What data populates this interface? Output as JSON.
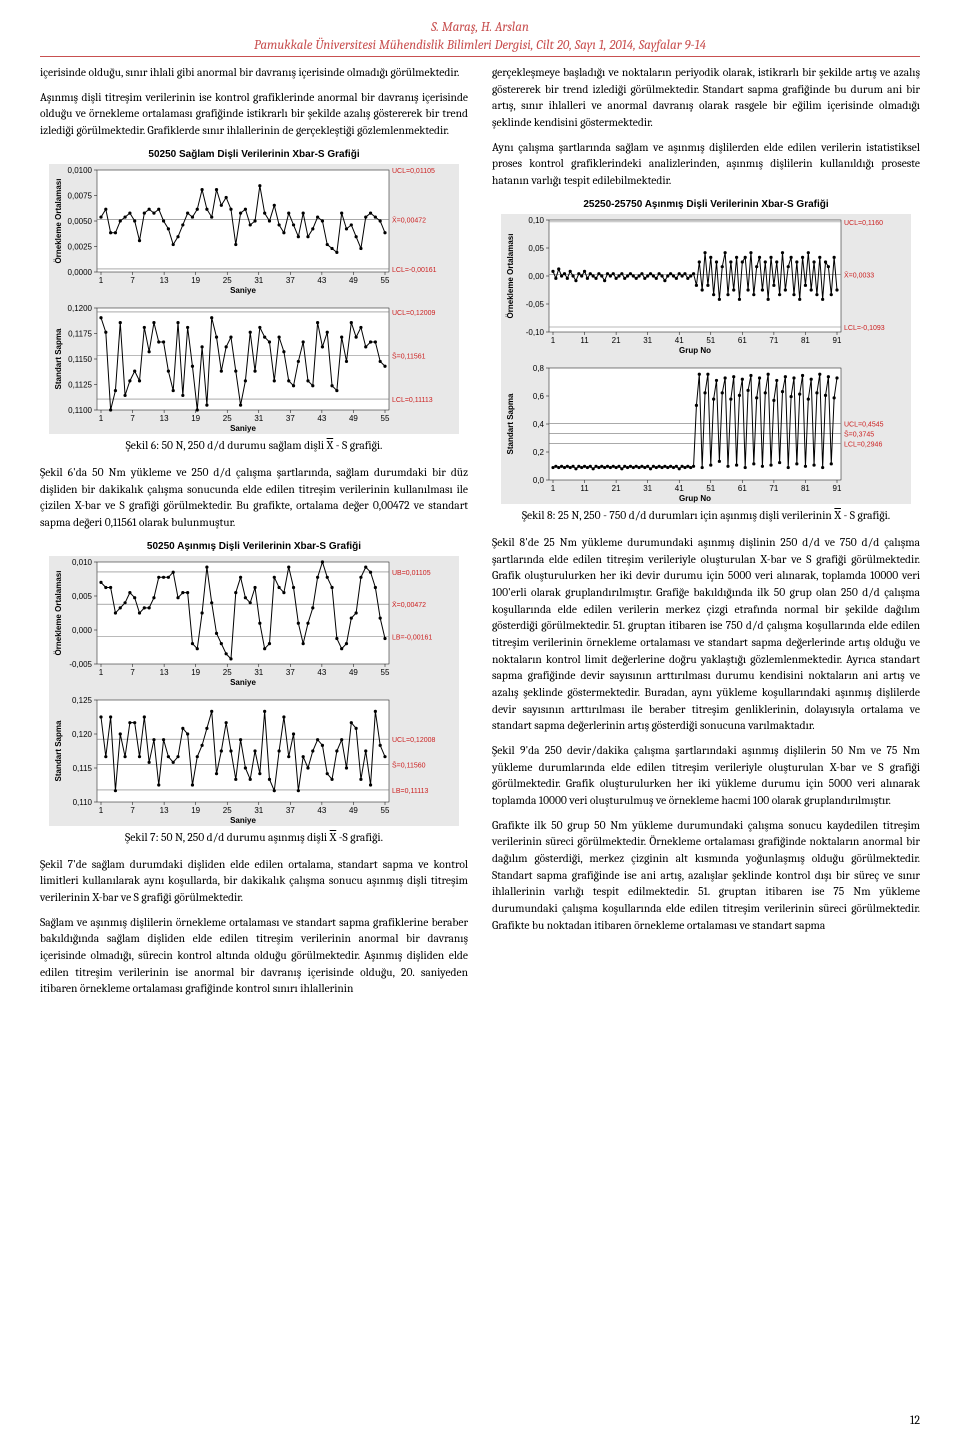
{
  "header": {
    "authors": "S. Maraş, H. Arslan",
    "journal": "Pamukkale Üniversitesi Mühendislik Bilimleri Dergisi, Cilt 20, Sayı 1, 2014, Sayfalar 9-14"
  },
  "leftColumn": {
    "p1": "içerisinde olduğu, sınır ihlali gibi anormal bir davranış içerisinde olmadığı görülmektedir.",
    "p2": "Aşınmış dişli titreşim verilerinin ise kontrol grafiklerinde anormal bir davranış içerisinde olduğu ve örnekleme ortalaması grafiğinde istikrarlı bir şekilde azalış göstererek bir trend izlediği görülmektedir. Grafiklerde sınır ihlallerinin de gerçekleştiği gözlemlenmektedir.",
    "fig6caption": "Şekil 6: 50 N, 250 d/d durumu sağlam dişli ",
    "fig6captionEnd": " - S grafiği.",
    "p3": "Şekil 6'da 50 Nm yükleme ve 250 d/d çalışma şartlarında, sağlam durumdaki bir düz dişliden bir dakikalık çalışma sonucunda elde edilen titreşim verilerinin kullanılması ile çizilen X-bar ve S grafiği görülmektedir. Bu grafikte, ortalama değer 0,00472 ve standart sapma değeri 0,11561 olarak bulunmuştur.",
    "fig7caption": "Şekil 7: 50 N, 250 d/d durumu aşınmış dişli ",
    "fig7captionEnd": " -S grafiği.",
    "p4": "Şekil 7'de sağlam durumdaki dişliden elde edilen ortalama, standart sapma ve kontrol limitleri kullanılarak aynı koşullarda, bir dakikalık çalışma sonucu aşınmış dişli titreşim verilerinin X-bar ve S grafiği görülmektedir.",
    "p5": "Sağlam ve aşınmış dişlilerin örnekleme ortalaması ve standart sapma grafiklerine beraber bakıldığında sağlam dişliden elde edilen titreşim verilerinin anormal bir davranış içerisinde olmadığı, sürecin kontrol altında olduğu görülmektedir. Aşınmış dişliden elde edilen titreşim verilerinin ise anormal bir davranış içerisinde olduğu, 20. saniyeden itibaren örnekleme ortalaması grafiğinde kontrol sınırı ihlallerinin"
  },
  "rightColumn": {
    "p1": "gerçekleşmeye başladığı ve noktaların periyodik olarak, istikrarlı bir şekilde artış ve azalış göstererek bir trend izlediği görülmektedir. Standart sapma grafiğinde bu durum ani bir artış, sınır ihlalleri ve anormal davranış olarak rasgele bir eğilim içerisinde olmadığı şeklinde kendisini göstermektedir.",
    "p2": "Aynı çalışma şartlarında sağlam ve aşınmış dişlilerden elde edilen verilerin istatistiksel proses kontrol grafiklerindeki analizlerinden, aşınmış dişlilerin kullanıldığı proseste hatanın varlığı tespit edilebilmektedir.",
    "fig8caption": "Şekil 8: 25 N, 250 - 750 d/d durumları için aşınmış dişli verilerinin ",
    "fig8captionEnd": " - S grafiği.",
    "p3": "Şekil 8'de 25 Nm yükleme durumundaki aşınmış dişlinin 250 d/d ve 750 d/d çalışma şartlarında elde edilen titreşim verileriyle oluşturulan X-bar ve S grafiği görülmektedir. Grafik oluşturulurken her iki devir durumu için 5000 veri alınarak, toplamda 10000 veri 100'erli olarak gruplandırılmıştır. Grafiğe bakıldığında ilk 50 grup olan 250 d/d çalışma koşullarında elde edilen verilerin merkez çizgi etrafında normal bir şekilde dağılım gösterdiği görülmektedir. 51. gruptan itibaren ise 750 d/d çalışma koşullarında elde edilen titreşim verilerinin örnekleme ortalaması ve standart sapma değerlerinde artış olduğu ve noktaların kontrol limit değerlerine doğru yaklaştığı gözlemlenmektedir. Ayrıca standart sapma grafiğinde devir sayısının arttırılması durumu kendisini noktaların ani artış ve azalış şeklinde göstermektedir. Buradan, aynı yükleme koşullarındaki aşınmış dişlilerde devir sayısının arttırılması ile beraber titreşim genliklerinin, dolayısıyla ortalama ve standart sapma değerlerinin artış gösterdiği sonucuna varılmaktadır.",
    "p4": "Şekil 9'da 250 devir/dakika çalışma şartlarındaki aşınmış dişlilerin 50 Nm ve 75 Nm yükleme durumlarında elde edilen titreşim verileriyle oluşturulan X-bar ve S grafiği görülmektedir. Grafik oluşturulurken her iki yükleme durumu için 5000 veri alınarak toplamda 10000 veri oluşturulmuş ve örnekleme hacmi 100 olarak gruplandırılmıştır.",
    "p5": "Grafikte ilk 50 grup 50 Nm yükleme durumundaki çalışma sonucu kaydedilen titreşim verilerinin süreci görülmektedir. Örnekleme ortalaması grafiğinde noktaların anormal bir dağılım gösterdiği, merkez çizginin alt kısmında yoğunlaşmış olduğu görülmektedir. Standart sapma grafiğinde ise ani artış, azalışlar şeklinde kontrol dışı bir süreç ve sınır ihlallerinin varlığı tespit edilmektedir. 51. gruptan itibaren ise 75 Nm yükleme durumundaki çalışma koşullarında elde edilen titreşim verilerinin süreci görülmektedir. Grafikte bu noktadan itibaren örnekleme ortalaması ve standart sapma"
  },
  "chart6": {
    "title": "50250 Sağlam Dişli Verilerinin Xbar-S Grafiği",
    "background": "#e8e8e8",
    "panel_bg": "#ffffff",
    "line_color": "#000000",
    "marker_color": "#000000",
    "ref_color": "#777777",
    "label_color": "#cc2222",
    "axis_font": 8,
    "top": {
      "ylabel": "Örnekleme Ortalaması",
      "yticks": [
        "0,0000",
        "0,0025",
        "0,0050",
        "0,0075",
        "0,0100"
      ],
      "xlabel": "Saniye",
      "xticks": [
        1,
        7,
        13,
        19,
        25,
        31,
        37,
        43,
        49,
        55
      ],
      "ucl": "UCL=0,01105",
      "ctr": "X̄=0,00472",
      "lcl": "LCL=-0,00161",
      "ylim": [
        -0.002,
        0.011
      ],
      "series": [
        0.005,
        0.006,
        0.003,
        0.003,
        0.0045,
        0.005,
        0.0055,
        0.0045,
        0.002,
        0.0055,
        0.006,
        0.0055,
        0.006,
        0.0045,
        0.0035,
        0.0015,
        0.0025,
        0.004,
        0.0055,
        0.005,
        0.006,
        0.0085,
        0.006,
        0.005,
        0.0085,
        0.0065,
        0.0075,
        0.006,
        0.0015,
        0.0055,
        0.006,
        0.004,
        0.0045,
        0.009,
        0.0055,
        0.0045,
        0.0065,
        0.004,
        0.003,
        0.0055,
        0.004,
        0.0025,
        0.0055,
        0.0025,
        0.0035,
        0.005,
        0.0045,
        0.0015,
        0.001,
        0.0005,
        0.0055,
        0.0035,
        0.004,
        0.0025,
        0.001,
        0.005,
        0.0055,
        0.005,
        0.0045,
        0.003
      ]
    },
    "bottom": {
      "ylabel": "Standart Sapma",
      "yticks": [
        "0,1100",
        "0,1125",
        "0,1150",
        "0,1175",
        "0,1200"
      ],
      "xlabel": "Saniye",
      "xticks": [
        1,
        7,
        13,
        19,
        25,
        31,
        37,
        43,
        49,
        55
      ],
      "ucl": "UCL=0,12009",
      "ctr": "S̄=0,11561",
      "lcl": "LCL=0,11113",
      "ylim": [
        0.11,
        0.1205
      ],
      "series": [
        0.1195,
        0.118,
        0.11,
        0.112,
        0.119,
        0.1115,
        0.113,
        0.114,
        0.113,
        0.1185,
        0.116,
        0.119,
        0.117,
        0.117,
        0.114,
        0.112,
        0.119,
        0.1115,
        0.1185,
        0.1145,
        0.11,
        0.1165,
        0.1105,
        0.1195,
        0.1175,
        0.114,
        0.1165,
        0.1175,
        0.114,
        0.1105,
        0.113,
        0.118,
        0.114,
        0.1185,
        0.1175,
        0.117,
        0.113,
        0.1175,
        0.116,
        0.113,
        0.1125,
        0.115,
        0.117,
        0.113,
        0.1125,
        0.119,
        0.1165,
        0.118,
        0.1125,
        0.112,
        0.1175,
        0.115,
        0.119,
        0.1175,
        0.1185,
        0.1165,
        0.117,
        0.117,
        0.115,
        0.1145
      ]
    }
  },
  "chart7": {
    "title": "50250 Aşınmış Dişli Verilerinin Xbar-S Grafiği",
    "background": "#e8e8e8",
    "panel_bg": "#ffffff",
    "line_color": "#000000",
    "ref_color": "#777777",
    "label_color": "#cc2222",
    "axis_font": 8,
    "top": {
      "ylabel": "Örnekleme Ortalaması",
      "yticks": [
        "-0,005",
        "0,000",
        "0,005",
        "0,010"
      ],
      "xlabel": "Saniye",
      "xticks": [
        1,
        7,
        13,
        19,
        25,
        31,
        37,
        43,
        49,
        55
      ],
      "ucl": "UB=0,01105",
      "ctr": "X̄=0,00472",
      "lcl": "LB=-0,00161",
      "ylim": [
        -0.007,
        0.013
      ],
      "series": [
        0.009,
        0.008,
        0.008,
        0.003,
        0.004,
        0.005,
        0.007,
        0.006,
        0.003,
        0.004,
        0.004,
        0.006,
        0.01,
        0.01,
        0.01,
        0.011,
        0.006,
        0.007,
        0.007,
        -0.003,
        -0.004,
        0.003,
        0.012,
        0.005,
        -0.001,
        -0.003,
        -0.005,
        -0.006,
        0.007,
        0.01,
        0.006,
        0.005,
        0.008,
        0.001,
        -0.004,
        -0.003,
        0.01,
        0.008,
        0.007,
        0.012,
        0.008,
        0.001,
        -0.003,
        0.001,
        0.004,
        0.01,
        0.013,
        0.01,
        0.008,
        -0.002,
        -0.004,
        -0.003,
        0.002,
        0.003,
        0.01,
        0.012,
        0.011,
        0.008,
        0.002,
        -0.002
      ]
    },
    "bottom": {
      "ylabel": "Standart Sapma",
      "yticks": [
        "0,110",
        "0,115",
        "0,120",
        "0,125"
      ],
      "xlabel": "Saniye",
      "xticks": [
        1,
        7,
        13,
        19,
        25,
        31,
        37,
        43,
        49,
        55
      ],
      "ucl": "UCL=0,12008",
      "ctr": "S̄=0,11560",
      "lcl": "LB=0,11113",
      "ylim": [
        0.109,
        0.127
      ],
      "series": [
        0.124,
        0.117,
        0.124,
        0.111,
        0.121,
        0.117,
        0.123,
        0.123,
        0.117,
        0.124,
        0.116,
        0.12,
        0.112,
        0.12,
        0.117,
        0.116,
        0.117,
        0.122,
        0.121,
        0.112,
        0.117,
        0.119,
        0.122,
        0.125,
        0.114,
        0.118,
        0.123,
        0.118,
        0.113,
        0.12,
        0.115,
        0.113,
        0.118,
        0.114,
        0.125,
        0.113,
        0.111,
        0.118,
        0.124,
        0.117,
        0.121,
        0.111,
        0.117,
        0.115,
        0.118,
        0.12,
        0.119,
        0.114,
        0.113,
        0.118,
        0.12,
        0.115,
        0.123,
        0.122,
        0.113,
        0.118,
        0.112,
        0.125,
        0.119,
        0.117
      ]
    }
  },
  "chart8": {
    "title": "25250-25750 Aşınmış Dişli Verilerinin Xbar-S Grafiği",
    "background": "#e8e8e8",
    "panel_bg": "#ffffff",
    "line_color": "#000000",
    "ref_color": "#777777",
    "label_color": "#cc2222",
    "axis_font": 8,
    "top": {
      "ylabel": "Örnekleme Ortalaması",
      "yticks": [
        "-0,10",
        "-0,05",
        "0,00",
        "0,05",
        "0,10"
      ],
      "xlabel": "Grup No",
      "xticks": [
        1,
        11,
        21,
        31,
        41,
        51,
        61,
        71,
        81,
        91
      ],
      "ucl": "UCL=0,1160",
      "ctr": "X̄=0,0033",
      "lcl": "LCL=-0,1093",
      "ylim": [
        -0.12,
        0.12
      ],
      "series": [
        0.01,
        -0.005,
        0.015,
        0.0,
        0.005,
        -0.005,
        0.01,
        0.0,
        -0.01,
        0.005,
        0.0,
        0.01,
        -0.005,
        0.005,
        0.0,
        -0.005,
        0.005,
        0.0,
        -0.01,
        0.005,
        0.0,
        0.005,
        -0.005,
        0.0,
        0.005,
        -0.005,
        0.0,
        0.005,
        0.0,
        -0.005,
        0.0,
        0.005,
        -0.005,
        0.0,
        0.005,
        0.0,
        -0.005,
        0.005,
        0.0,
        -0.01,
        0.0,
        0.005,
        0.0,
        -0.005,
        0.005,
        0.0,
        0.005,
        -0.005,
        0.0,
        0.005,
        -0.02,
        0.03,
        -0.03,
        0.05,
        -0.02,
        0.04,
        -0.04,
        0.03,
        -0.05,
        0.02,
        0.05,
        -0.04,
        0.03,
        -0.03,
        0.04,
        -0.05,
        0.03,
        0.04,
        -0.03,
        0.05,
        -0.04,
        0.02,
        0.04,
        -0.03,
        0.03,
        -0.05,
        0.04,
        -0.02,
        0.03,
        -0.04,
        0.05,
        -0.03,
        0.02,
        0.04,
        -0.04,
        0.03,
        -0.05,
        0.04,
        -0.02,
        0.05,
        -0.03,
        0.03,
        -0.04,
        0.04,
        -0.05,
        0.03,
        0.02,
        -0.04,
        0.04,
        -0.03
      ]
    },
    "bottom": {
      "ylabel": "Standart Sapma",
      "yticks": [
        "0,0",
        "0,2",
        "0,4",
        "0,6",
        "0,8"
      ],
      "xlabel": "Grup No",
      "xticks": [
        1,
        11,
        21,
        31,
        41,
        51,
        61,
        71,
        81,
        91
      ],
      "ucl": "UCL=0,4545",
      "ctr": "S̄=0,3745",
      "lcl": "LCL=0,2946",
      "ylim": [
        0.0,
        0.9
      ],
      "series": [
        0.1,
        0.11,
        0.1,
        0.11,
        0.1,
        0.11,
        0.1,
        0.11,
        0.09,
        0.11,
        0.1,
        0.11,
        0.1,
        0.11,
        0.09,
        0.11,
        0.1,
        0.11,
        0.1,
        0.11,
        0.1,
        0.11,
        0.1,
        0.11,
        0.09,
        0.11,
        0.1,
        0.11,
        0.1,
        0.11,
        0.1,
        0.11,
        0.1,
        0.11,
        0.09,
        0.11,
        0.1,
        0.11,
        0.1,
        0.11,
        0.1,
        0.11,
        0.1,
        0.11,
        0.09,
        0.11,
        0.1,
        0.11,
        0.1,
        0.11,
        0.6,
        0.85,
        0.1,
        0.7,
        0.85,
        0.12,
        0.65,
        0.8,
        0.15,
        0.7,
        0.82,
        0.11,
        0.65,
        0.83,
        0.12,
        0.68,
        0.81,
        0.1,
        0.72,
        0.84,
        0.13,
        0.66,
        0.82,
        0.11,
        0.7,
        0.85,
        0.12,
        0.64,
        0.8,
        0.14,
        0.71,
        0.83,
        0.1,
        0.67,
        0.82,
        0.13,
        0.69,
        0.84,
        0.11,
        0.65,
        0.81,
        0.12,
        0.7,
        0.85,
        0.1,
        0.68,
        0.83,
        0.13,
        0.66,
        0.82
      ]
    }
  },
  "pagenum": "12"
}
